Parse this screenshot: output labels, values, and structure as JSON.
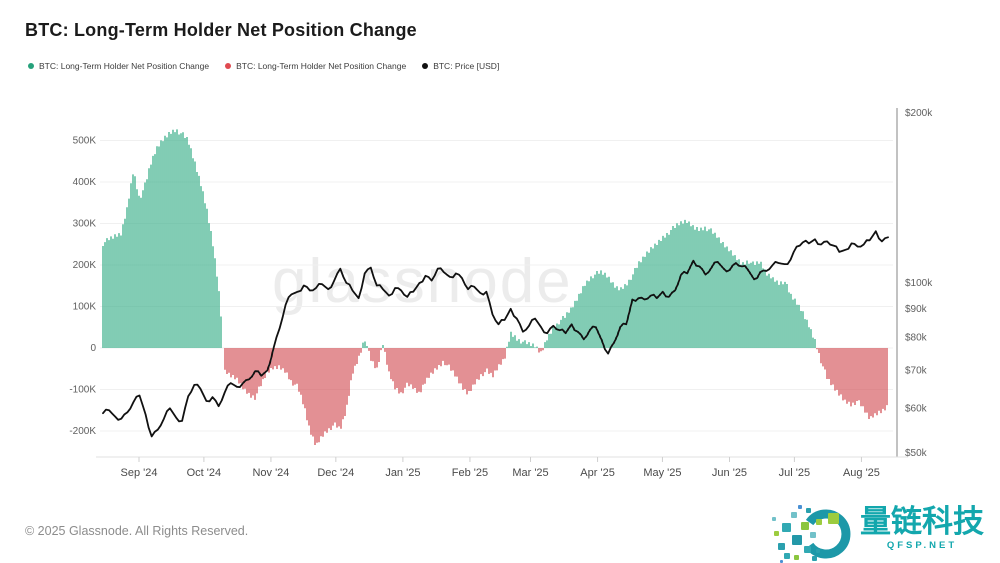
{
  "header": {
    "title": "BTC: Long-Term Holder Net Position Change"
  },
  "legend": [
    {
      "name": "lth-net-position-positive",
      "label": "BTC: Long-Term Holder Net Position Change",
      "color": "#26a17b"
    },
    {
      "name": "lth-net-position-negative",
      "label": "BTC: Long-Term Holder Net Position Change",
      "color": "#e04a50"
    },
    {
      "name": "btc-price",
      "label": "BTC: Price [USD]",
      "color": "#111111"
    }
  ],
  "watermark": "glassnode",
  "footer": {
    "copyright": "© 2025 Glassnode. All Rights Reserved."
  },
  "logo": {
    "brand": "量链科技",
    "domain": "QFSP.NET",
    "color": "#13a7ad"
  },
  "chart_data": {
    "type": "combo",
    "subtypes": [
      "bar",
      "line"
    ],
    "title": "BTC: Long-Term Holder Net Position Change",
    "x_axis": {
      "labels": [
        "Sep '24",
        "Oct '24",
        "Nov '24",
        "Dec '24",
        "Jan '25",
        "Feb '25",
        "Mar '25",
        "Apr '25",
        "May '25",
        "Jun '25",
        "Jul '25",
        "Aug '25"
      ],
      "span": "late Aug 2024 to late Aug 2025"
    },
    "left_axis": {
      "title": "LTH Net Position Change (BTC)",
      "tick_labels": [
        "500K",
        "400K",
        "300K",
        "200K",
        "100K",
        "0",
        "-100K",
        "-200K"
      ],
      "tick_values": [
        500000,
        400000,
        300000,
        200000,
        100000,
        0,
        -100000,
        -200000
      ],
      "range": [
        -262000,
        573000
      ],
      "grid": true
    },
    "right_axis": {
      "title": "BTC Price (USD)",
      "scale": "log",
      "tick_labels": [
        "$200k",
        "$100k",
        "$90k",
        "$80k",
        "$70k",
        "$60k",
        "$50k"
      ],
      "tick_values": [
        200000,
        100000,
        90000,
        80000,
        70000,
        60000,
        50000
      ],
      "grid": false
    },
    "samples_per_series": 130,
    "series": [
      {
        "name": "BTC: Long-Term Holder Net Position Change",
        "type": "bar",
        "axis": "left",
        "unit": "K BTC",
        "positive_color": "#3eb18c",
        "negative_color": "#d4545a",
        "values": [
          253,
          260,
          268,
          275,
          340,
          430,
          360,
          395,
          450,
          485,
          505,
          520,
          528,
          515,
          498,
          450,
          400,
          340,
          260,
          150,
          -58,
          -68,
          -75,
          -95,
          -110,
          -118,
          -90,
          -60,
          -48,
          -45,
          -55,
          -80,
          -95,
          -140,
          -200,
          -235,
          -210,
          -195,
          -185,
          -198,
          -150,
          -60,
          -25,
          25,
          -30,
          -55,
          10,
          -60,
          -95,
          -108,
          -90,
          -98,
          -112,
          -80,
          -60,
          -45,
          -30,
          -50,
          -70,
          -95,
          -110,
          -85,
          -65,
          -55,
          -70,
          -45,
          -25,
          38,
          25,
          15,
          8,
          4,
          -12,
          25,
          50,
          65,
          75,
          95,
          120,
          150,
          170,
          178,
          180,
          170,
          150,
          142,
          155,
          175,
          200,
          220,
          238,
          252,
          268,
          280,
          290,
          300,
          305,
          292,
          287,
          292,
          280,
          265,
          248,
          235,
          220,
          205,
          212,
          200,
          207,
          180,
          170,
          158,
          162,
          125,
          108,
          85,
          55,
          20,
          -30,
          -75,
          -95,
          -112,
          -128,
          -135,
          -128,
          -150,
          -172,
          -160,
          -152,
          -138
        ]
      },
      {
        "name": "BTC: Price [USD]",
        "type": "line",
        "axis": "right",
        "unit": "USD thousands",
        "color": "#111111",
        "values": [
          58.8,
          59.5,
          58.0,
          57.5,
          59.0,
          61.5,
          63.2,
          58.5,
          53.5,
          55.0,
          57.5,
          60.0,
          57.8,
          57.0,
          63.0,
          66.0,
          65.0,
          61.8,
          62.8,
          60.5,
          64.0,
          66.5,
          65.5,
          66.5,
          67.5,
          69.8,
          68.5,
          70.0,
          76.5,
          83.0,
          91.5,
          95.5,
          96.5,
          99.0,
          97.0,
          98.0,
          99.5,
          97.5,
          101.0,
          106.0,
          100.0,
          97.0,
          94.0,
          104.0,
          106.5,
          99.0,
          97.5,
          95.0,
          98.0,
          97.0,
          94.5,
          96.5,
          100.0,
          103.0,
          101.0,
          106.0,
          104.5,
          102.5,
          104.0,
          102.0,
          97.5,
          98.5,
          96.0,
          96.5,
          88.0,
          84.5,
          86.0,
          90.0,
          86.5,
          82.0,
          84.0,
          86.5,
          83.5,
          81.5,
          84.0,
          82.5,
          81.5,
          84.5,
          82.0,
          79.5,
          82.5,
          83.5,
          79.0,
          75.0,
          78.5,
          83.5,
          84.5,
          93.5,
          94.0,
          93.5,
          95.0,
          94.0,
          96.5,
          94.5,
          97.0,
          103.5,
          104.0,
          109.5,
          107.0,
          103.5,
          106.5,
          109.0,
          106.0,
          105.5,
          108.5,
          107.0,
          105.5,
          101.5,
          104.5,
          105.0,
          107.5,
          108.5,
          108.0,
          110.0,
          116.0,
          118.0,
          117.5,
          119.5,
          117.0,
          118.5,
          116.5,
          113.5,
          114.5,
          117.5,
          116.0,
          117.0,
          119.0,
          123.5,
          118.5,
          120.5
        ]
      }
    ]
  }
}
